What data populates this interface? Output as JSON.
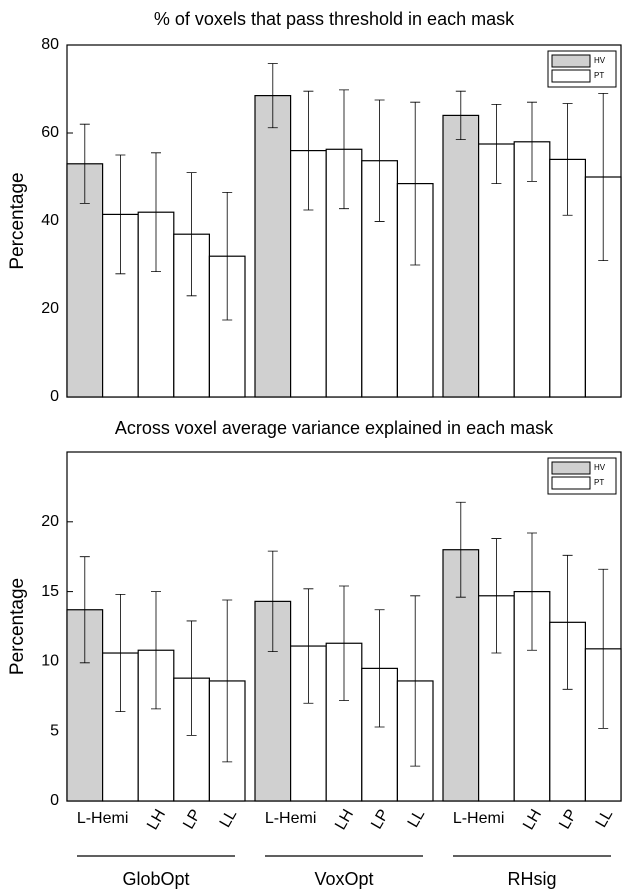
{
  "chart_data": [
    {
      "type": "bar",
      "title": "% of voxels that pass threshold in each mask",
      "y_label": "Percentage",
      "ylim": [
        0,
        80
      ],
      "yticks": [
        0,
        20,
        40,
        60,
        80
      ],
      "series": [
        {
          "name": "HV",
          "color": "#d0d0d0",
          "values": [
            53,
            null,
            null,
            null,
            68.5,
            null,
            null,
            null,
            64,
            null,
            null,
            null
          ],
          "errors": [
            9,
            null,
            null,
            null,
            7.3,
            null,
            null,
            null,
            5.5,
            null,
            null,
            null
          ]
        },
        {
          "name": "PT",
          "color": "#ffffff",
          "values": [
            41.5,
            42,
            37,
            32,
            56,
            56.3,
            53.7,
            48.5,
            57.5,
            58,
            54,
            50
          ],
          "errors": [
            13.5,
            13.5,
            14,
            14.5,
            13.5,
            13.5,
            13.8,
            18.5,
            9,
            9,
            12.7,
            19
          ]
        }
      ]
    },
    {
      "type": "bar",
      "title": "Across voxel average variance explained in each mask",
      "y_label": "Percentage",
      "ylim": [
        0,
        25
      ],
      "yticks": [
        0,
        5,
        10,
        15,
        20
      ],
      "categories": [
        "L-Hemi",
        "LH",
        "LP",
        "LL",
        "L-Hemi",
        "LH",
        "LP",
        "LL",
        "L-Hemi",
        "LH",
        "LP",
        "LL"
      ],
      "groups": [
        "GlobOpt",
        "VoxOpt",
        "RHsig"
      ],
      "series": [
        {
          "name": "HV",
          "color": "#d0d0d0",
          "values": [
            13.7,
            null,
            null,
            null,
            14.3,
            null,
            null,
            null,
            18,
            null,
            null,
            null
          ],
          "errors": [
            3.8,
            null,
            null,
            null,
            3.6,
            null,
            null,
            null,
            3.4,
            null,
            null,
            null
          ]
        },
        {
          "name": "PT",
          "color": "#ffffff",
          "values": [
            10.6,
            10.8,
            8.8,
            8.6,
            11.1,
            11.3,
            9.5,
            8.6,
            14.7,
            15,
            12.8,
            10.9
          ],
          "errors": [
            4.2,
            4.2,
            4.1,
            5.8,
            4.1,
            4.1,
            4.2,
            6.1,
            4.1,
            4.2,
            4.8,
            5.7
          ]
        }
      ]
    }
  ]
}
